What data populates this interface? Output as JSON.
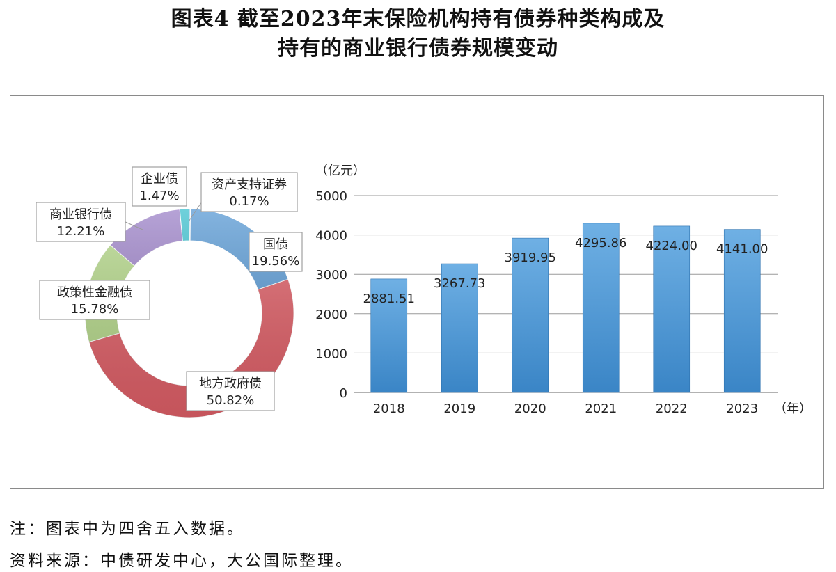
{
  "title": {
    "line1": "图表4 截至2023年末保险机构持有债券种类构成及",
    "line2": "持有的商业银行债券规模变动"
  },
  "notes": {
    "note": "注：图表中为四舍五入数据。",
    "source": "资料来源：中债研发中心，大公国际整理。"
  },
  "chart_data": [
    {
      "type": "pie",
      "style": "donut",
      "slices": [
        {
          "name": "资产支持证券",
          "pct_label": "0.17%",
          "value": 0.17,
          "color": "#5aa6d6"
        },
        {
          "name": "国债",
          "pct_label": "19.56%",
          "value": 19.56,
          "color": "#5b9bd5"
        },
        {
          "name": "地方政府债",
          "pct_label": "50.82%",
          "value": 50.82,
          "color": "#e06068"
        },
        {
          "name": "政策性金融债",
          "pct_label": "15.78%",
          "value": 15.78,
          "color": "#b5d88a"
        },
        {
          "name": "商业银行债",
          "pct_label": "12.21%",
          "value": 12.21,
          "color": "#9e84c9"
        },
        {
          "name": "企业债",
          "pct_label": "1.47%",
          "value": 1.47,
          "color": "#3fc1cf"
        }
      ]
    },
    {
      "type": "bar",
      "ylabel": "（亿元）",
      "xlabel": "（年）",
      "ylim": [
        0,
        5000
      ],
      "yticks": [
        "0",
        "1000",
        "2000",
        "3000",
        "4000",
        "5000"
      ],
      "grid": true,
      "categories": [
        "2018",
        "2019",
        "2020",
        "2021",
        "2022",
        "2023"
      ],
      "values": [
        2881.51,
        3267.73,
        3919.95,
        4295.86,
        4224.0,
        4141.0
      ],
      "value_labels": [
        "2881.51",
        "3267.73",
        "3919.95",
        "4295.86",
        "4224.00",
        "4141.00"
      ],
      "color": "#3a87c8"
    }
  ]
}
